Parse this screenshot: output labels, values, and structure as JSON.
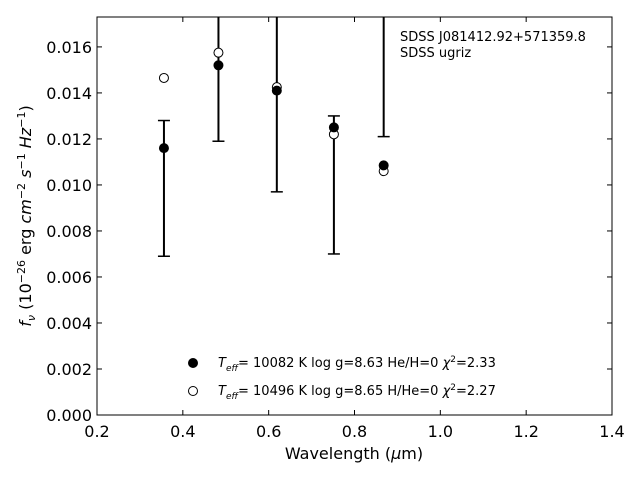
{
  "chart_data": {
    "type": "scatter",
    "xlabel": "Wavelength (μm)",
    "ylabel": "f_ν (10^-26 erg cm^-2 s^-1 Hz^-1)",
    "xlim": [
      0.2,
      1.4
    ],
    "ylim": [
      0.0,
      0.0173
    ],
    "xticks": [
      0.2,
      0.4,
      0.6,
      0.8,
      1.0,
      1.2,
      1.4
    ],
    "xtick_labels": [
      "0.2",
      "0.4",
      "0.6",
      "0.8",
      "1.0",
      "1.2",
      "1.4"
    ],
    "yticks": [
      0.0,
      0.002,
      0.004,
      0.006,
      0.008,
      0.01,
      0.012,
      0.014,
      0.016
    ],
    "ytick_labels": [
      "0.000",
      "0.002",
      "0.004",
      "0.006",
      "0.008",
      "0.010",
      "0.012",
      "0.014",
      "0.016"
    ],
    "grid": false,
    "legend_position": "bottom-center",
    "annotations": [
      "SDSS J081412.92+571359.8",
      "SDSS ugriz"
    ],
    "observed": {
      "x": [
        0.356,
        0.483,
        0.619,
        0.752,
        0.868
      ],
      "y": [
        0.0116,
        0.0152,
        0.0141,
        0.0125,
        0.01085
      ],
      "err_low": [
        0.0069,
        0.0119,
        0.0097,
        0.007,
        0.0121
      ],
      "err_high": [
        0.0128,
        0.0173,
        0.0173,
        0.013,
        0.0173
      ],
      "err_low_capped": [
        true,
        true,
        true,
        true,
        true
      ],
      "err_high_capped": [
        true,
        false,
        false,
        true,
        false
      ]
    },
    "series": [
      {
        "label_parts": [
          "= 10082 K  log g=8.63  He/H=0  ",
          "=2.33"
        ],
        "marker": "filled-circle",
        "x": [
          0.356,
          0.483,
          0.619,
          0.752,
          0.868
        ],
        "y": [
          0.0116,
          0.0152,
          0.0141,
          0.0125,
          0.01085
        ]
      },
      {
        "label_parts": [
          "= 10496 K  log g=8.65  H/He=0  ",
          "=2.27"
        ],
        "marker": "open-circle",
        "x": [
          0.356,
          0.483,
          0.619,
          0.752,
          0.868
        ],
        "y": [
          0.01465,
          0.01575,
          0.01425,
          0.0122,
          0.0106
        ]
      }
    ]
  }
}
